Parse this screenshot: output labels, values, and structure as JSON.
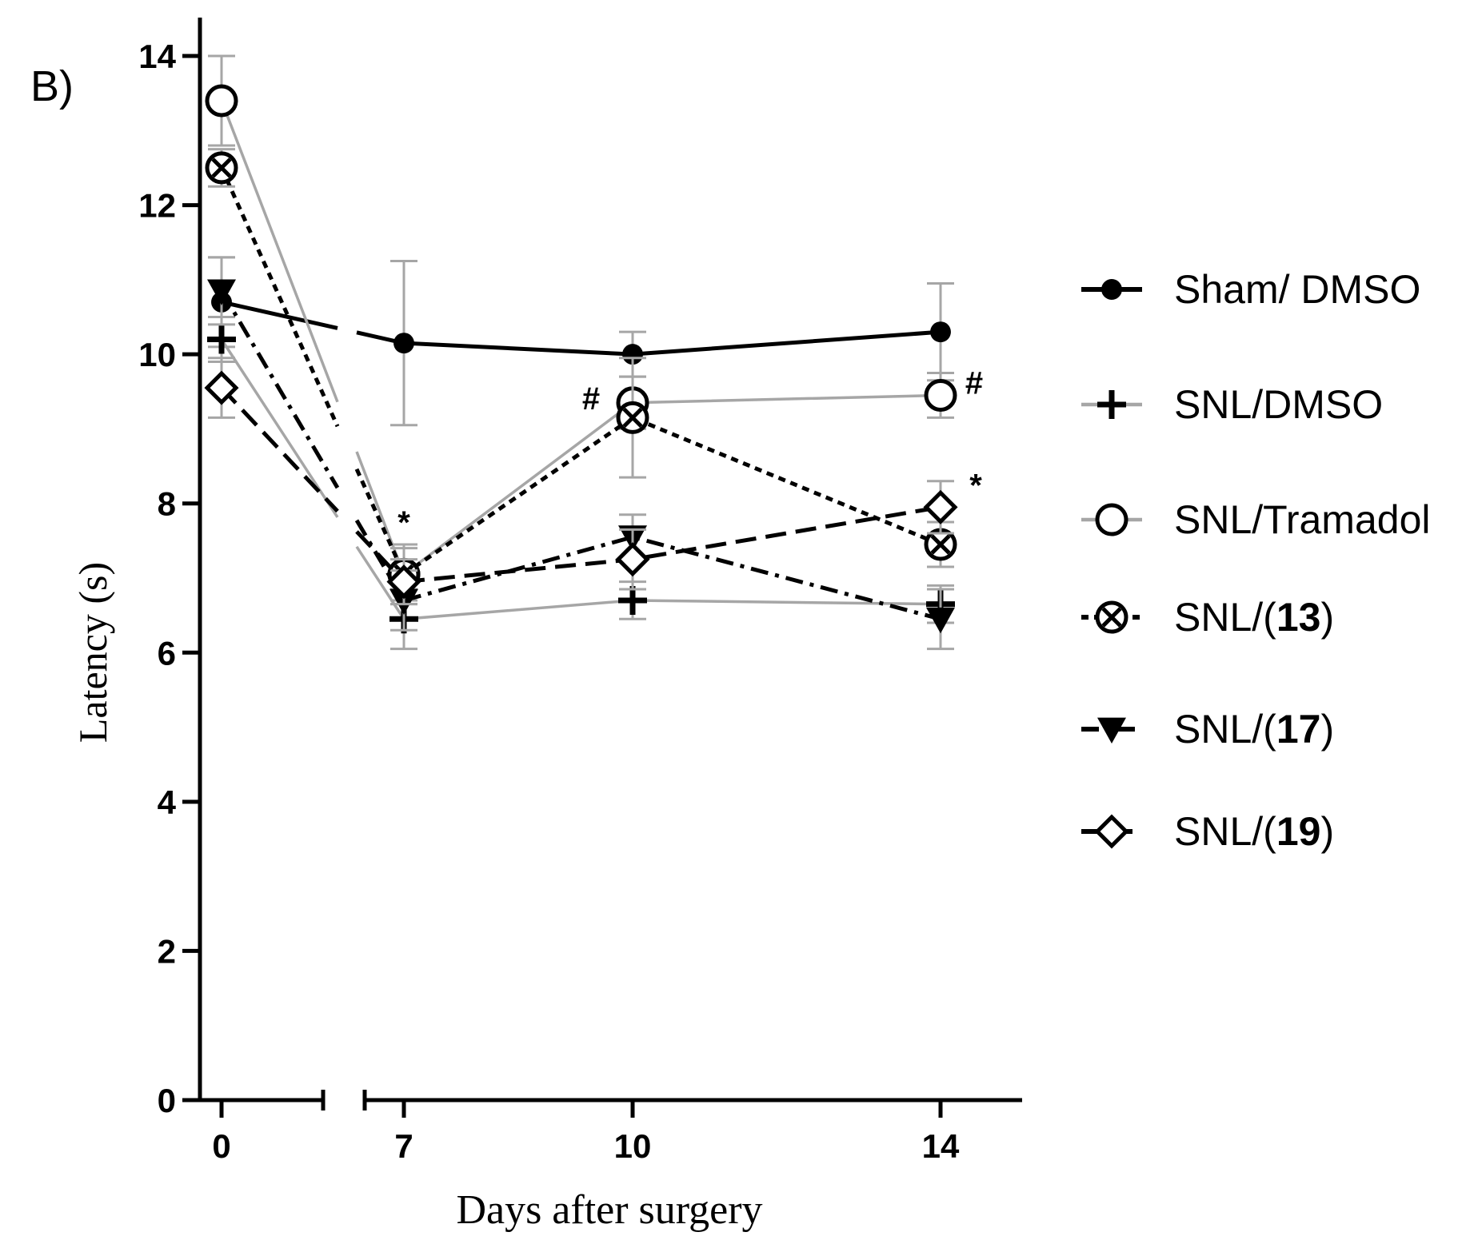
{
  "panel_label": "B)",
  "chart_data": {
    "type": "line",
    "title": "",
    "xlabel": "Days after surgery",
    "ylabel": "Latency (s)",
    "x_ticks": [
      "0",
      "7",
      "10",
      "14"
    ],
    "x_values": [
      0,
      7,
      10,
      14
    ],
    "y_ticks": [
      "0",
      "2",
      "4",
      "6",
      "8",
      "10",
      "12",
      "14"
    ],
    "ylim": [
      0,
      14
    ],
    "axis_break": "between day 0 and day 7",
    "legend_position": "right",
    "series": [
      {
        "name": "Sham/ DMSO",
        "name_plain": "Sham/ DMSO",
        "name_bold": "",
        "name_suffix": "",
        "marker": "filled-circle",
        "line_style": "solid",
        "line_color": "#000000",
        "values": [
          10.7,
          10.15,
          10.0,
          10.3
        ],
        "errors": [
          0.6,
          1.1,
          0.3,
          0.65
        ]
      },
      {
        "name": "SNL/DMSO",
        "name_plain": "SNL/DMSO",
        "name_bold": "",
        "name_suffix": "",
        "marker": "plus",
        "line_style": "solid",
        "line_color": "#a6a6a6",
        "values": [
          10.2,
          6.45,
          6.7,
          6.65
        ],
        "errors": [
          0.3,
          0.4,
          0.25,
          0.25
        ]
      },
      {
        "name": "SNL/Tramadol",
        "name_plain": "SNL/Tramadol",
        "name_bold": "",
        "name_suffix": "",
        "marker": "open-circle",
        "line_style": "solid",
        "line_color": "#a6a6a6",
        "values": [
          13.4,
          7.05,
          9.35,
          9.45
        ],
        "errors": [
          0.6,
          0.4,
          0.35,
          0.3
        ]
      },
      {
        "name": "SNL/(13)",
        "name_plain": "SNL/(",
        "name_bold": "13",
        "name_suffix": ")",
        "marker": "circle-x",
        "line_style": "dotted",
        "line_color": "#000000",
        "values": [
          12.5,
          7.05,
          9.15,
          7.45
        ],
        "errors": [
          0.25,
          0.35,
          0.8,
          0.3
        ]
      },
      {
        "name": "SNL/(17)",
        "name_plain": "SNL/(",
        "name_bold": "17",
        "name_suffix": ")",
        "marker": "down-triangle",
        "line_style": "dashdot",
        "line_color": "#000000",
        "values": [
          10.85,
          6.7,
          7.55,
          6.45
        ],
        "errors": [
          0.45,
          0.4,
          0.3,
          0.4
        ]
      },
      {
        "name": "SNL/(19)",
        "name_plain": "SNL/(",
        "name_bold": "19",
        "name_suffix": ")",
        "marker": "open-diamond",
        "line_style": "dashed",
        "line_color": "#000000",
        "values": [
          9.55,
          6.95,
          7.25,
          7.95
        ],
        "errors": [
          0.4,
          0.3,
          0.4,
          0.35
        ]
      }
    ],
    "annotations": [
      {
        "text": "*",
        "near_series": "SNL/Tramadol",
        "x": 7,
        "y": 7.3
      },
      {
        "text": "#",
        "near_series": "SNL/Tramadol",
        "x": 10,
        "y": 9.35
      },
      {
        "text": "#",
        "near_series": "SNL/Tramadol",
        "x": 14,
        "y": 9.45
      },
      {
        "text": "*",
        "near_series": "SNL/(19)",
        "x": 14,
        "y": 7.95
      }
    ]
  }
}
